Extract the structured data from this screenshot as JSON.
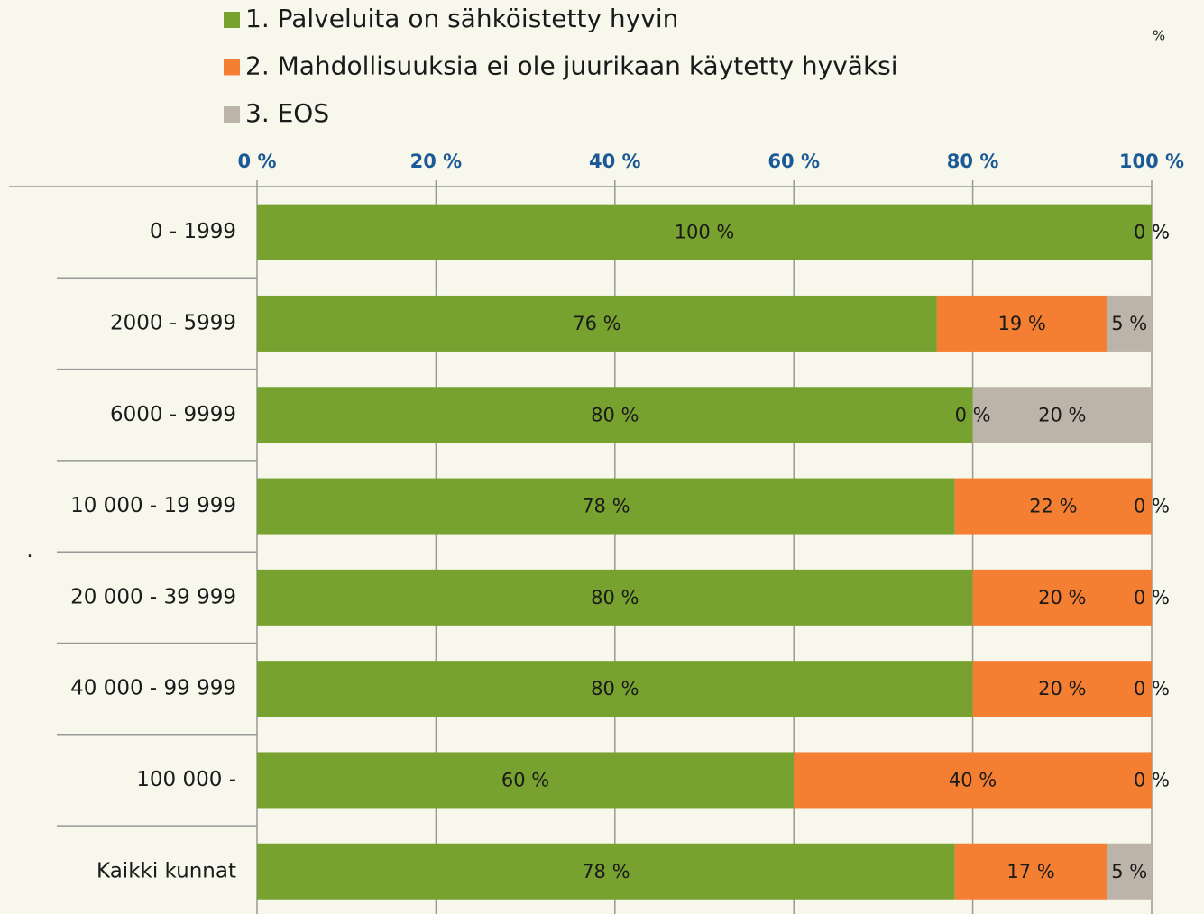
{
  "chart_data": {
    "type": "stacked_barh",
    "categories": [
      "0 - 1999",
      "2000 - 5999",
      "6000 - 9999",
      "10 000 - 19 999",
      "20 000 - 39 999",
      "40 000 - 99 999",
      "100 000 -",
      "Kaikki kunnat"
    ],
    "series": [
      {
        "name": "1. Palveluita on sähköistetty hyvin",
        "color": "#78a22f",
        "values": [
          100,
          76,
          80,
          78,
          80,
          80,
          60,
          78
        ],
        "value_labels": [
          "100 %",
          "76 %",
          "80 %",
          "78 %",
          "80 %",
          "80 %",
          "60 %",
          "78 %"
        ]
      },
      {
        "name": "2. Mahdollisuuksia ei ole juurikaan käytetty hyväksi",
        "color": "#f47f32",
        "values": [
          0,
          19,
          0,
          22,
          20,
          20,
          40,
          17
        ],
        "value_labels": [
          "0 %",
          "19 %",
          "0 %",
          "22 %",
          "20 %",
          "20 %",
          "40 %",
          "17 %"
        ]
      },
      {
        "name": "3. EOS",
        "color": "#bcb4a8",
        "values": [
          0,
          5,
          20,
          0,
          0,
          0,
          0,
          5
        ],
        "value_labels": [
          "0 %",
          "5 %",
          "20 %",
          "0 %",
          "0 %",
          "0 %",
          "0 %",
          "5 %"
        ]
      }
    ],
    "xlim": [
      0,
      100
    ],
    "xticks": [
      {
        "value": 0,
        "label": "0 %"
      },
      {
        "value": 20,
        "label": "20 %"
      },
      {
        "value": 40,
        "label": "40 %"
      },
      {
        "value": 60,
        "label": "60 %"
      },
      {
        "value": 80,
        "label": "80 %"
      },
      {
        "value": 100,
        "label": "100 %"
      }
    ],
    "grid": true,
    "annotations": [
      "%",
      "."
    ]
  }
}
